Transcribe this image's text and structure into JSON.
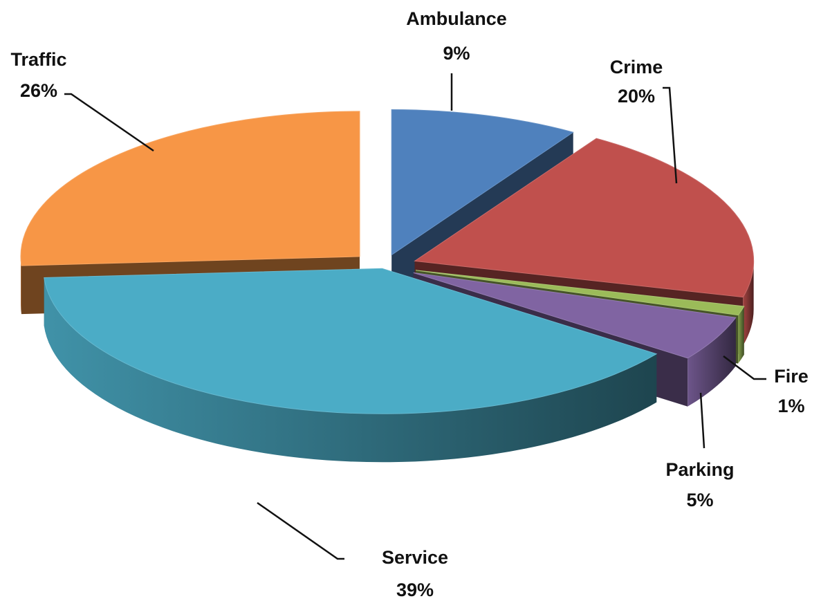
{
  "chart_data": {
    "type": "pie",
    "style": "3d-exploded",
    "title": "",
    "legend": "none",
    "slices": [
      {
        "label": "Ambulance",
        "value": 9,
        "pct_label": "9%",
        "color": "#4f81bd"
      },
      {
        "label": "Crime",
        "value": 20,
        "pct_label": "20%",
        "color": "#c0504d"
      },
      {
        "label": "Fire",
        "value": 1,
        "pct_label": "1%",
        "color": "#9bbb59"
      },
      {
        "label": "Parking",
        "value": 5,
        "pct_label": "5%",
        "color": "#8064a2"
      },
      {
        "label": "Service",
        "value": 39,
        "pct_label": "39%",
        "color": "#4bacc6"
      },
      {
        "label": "Traffic",
        "value": 26,
        "pct_label": "26%",
        "color": "#f79646"
      }
    ]
  }
}
